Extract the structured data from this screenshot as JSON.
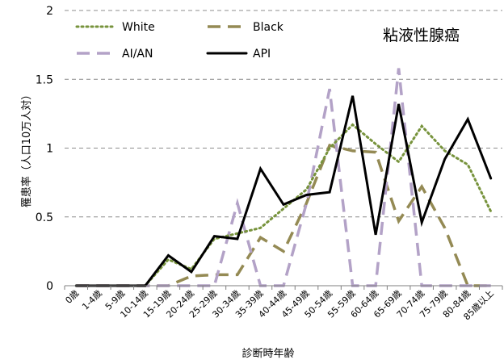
{
  "chart_data": {
    "type": "line",
    "title": "粘液性腺癌",
    "xlabel": "診断時年齢",
    "ylabel": "罹患率（人口10万人対）",
    "ylim": [
      0,
      2
    ],
    "yticks": [
      "0",
      "0.5",
      "1",
      "1.5",
      "2"
    ],
    "ytick_values": [
      0,
      0.5,
      1,
      1.5,
      2
    ],
    "grid": "horizontal dashed",
    "legend_placement": "top-left",
    "categories": [
      "0歳",
      "1-4歳",
      "5-9歳",
      "10-14歳",
      "15-19歳",
      "20-24歳",
      "25-29歳",
      "30-34歳",
      "35-39歳",
      "40-44歳",
      "45-49歳",
      "50-54歳",
      "55-59歳",
      "60-64歳",
      "65-69歳",
      "70-74歳",
      "75-79歳",
      "80-84歳",
      "85歳以上"
    ],
    "series": [
      {
        "name": "White",
        "color": "#77933c",
        "style": "dotted",
        "values": [
          0,
          0,
          0,
          0,
          0.19,
          0.12,
          0.34,
          0.38,
          0.42,
          0.56,
          0.7,
          1.0,
          1.17,
          1.03,
          0.9,
          1.16,
          0.98,
          0.88,
          0.54
        ]
      },
      {
        "name": "Black",
        "color": "#948a54",
        "style": "dashed",
        "values": [
          0,
          0,
          0,
          0,
          0,
          0.07,
          0.08,
          0.08,
          0.35,
          0.25,
          0.6,
          1.02,
          0.98,
          0.97,
          0.47,
          0.72,
          0.42,
          0,
          0
        ]
      },
      {
        "name": "AI/AN",
        "color": "#b3a2c7",
        "style": "dashed",
        "values": [
          0,
          0,
          0,
          0,
          0,
          0,
          0,
          0.6,
          0,
          0,
          0.6,
          1.43,
          0,
          0,
          1.58,
          0,
          0,
          0,
          0
        ]
      },
      {
        "name": "API",
        "color": "#000000",
        "style": "solid",
        "values": [
          0,
          0,
          0,
          0,
          0.22,
          0.1,
          0.36,
          0.34,
          0.85,
          0.59,
          0.66,
          0.68,
          1.38,
          0.37,
          1.32,
          0.46,
          0.92,
          1.21,
          0.78
        ]
      }
    ]
  }
}
